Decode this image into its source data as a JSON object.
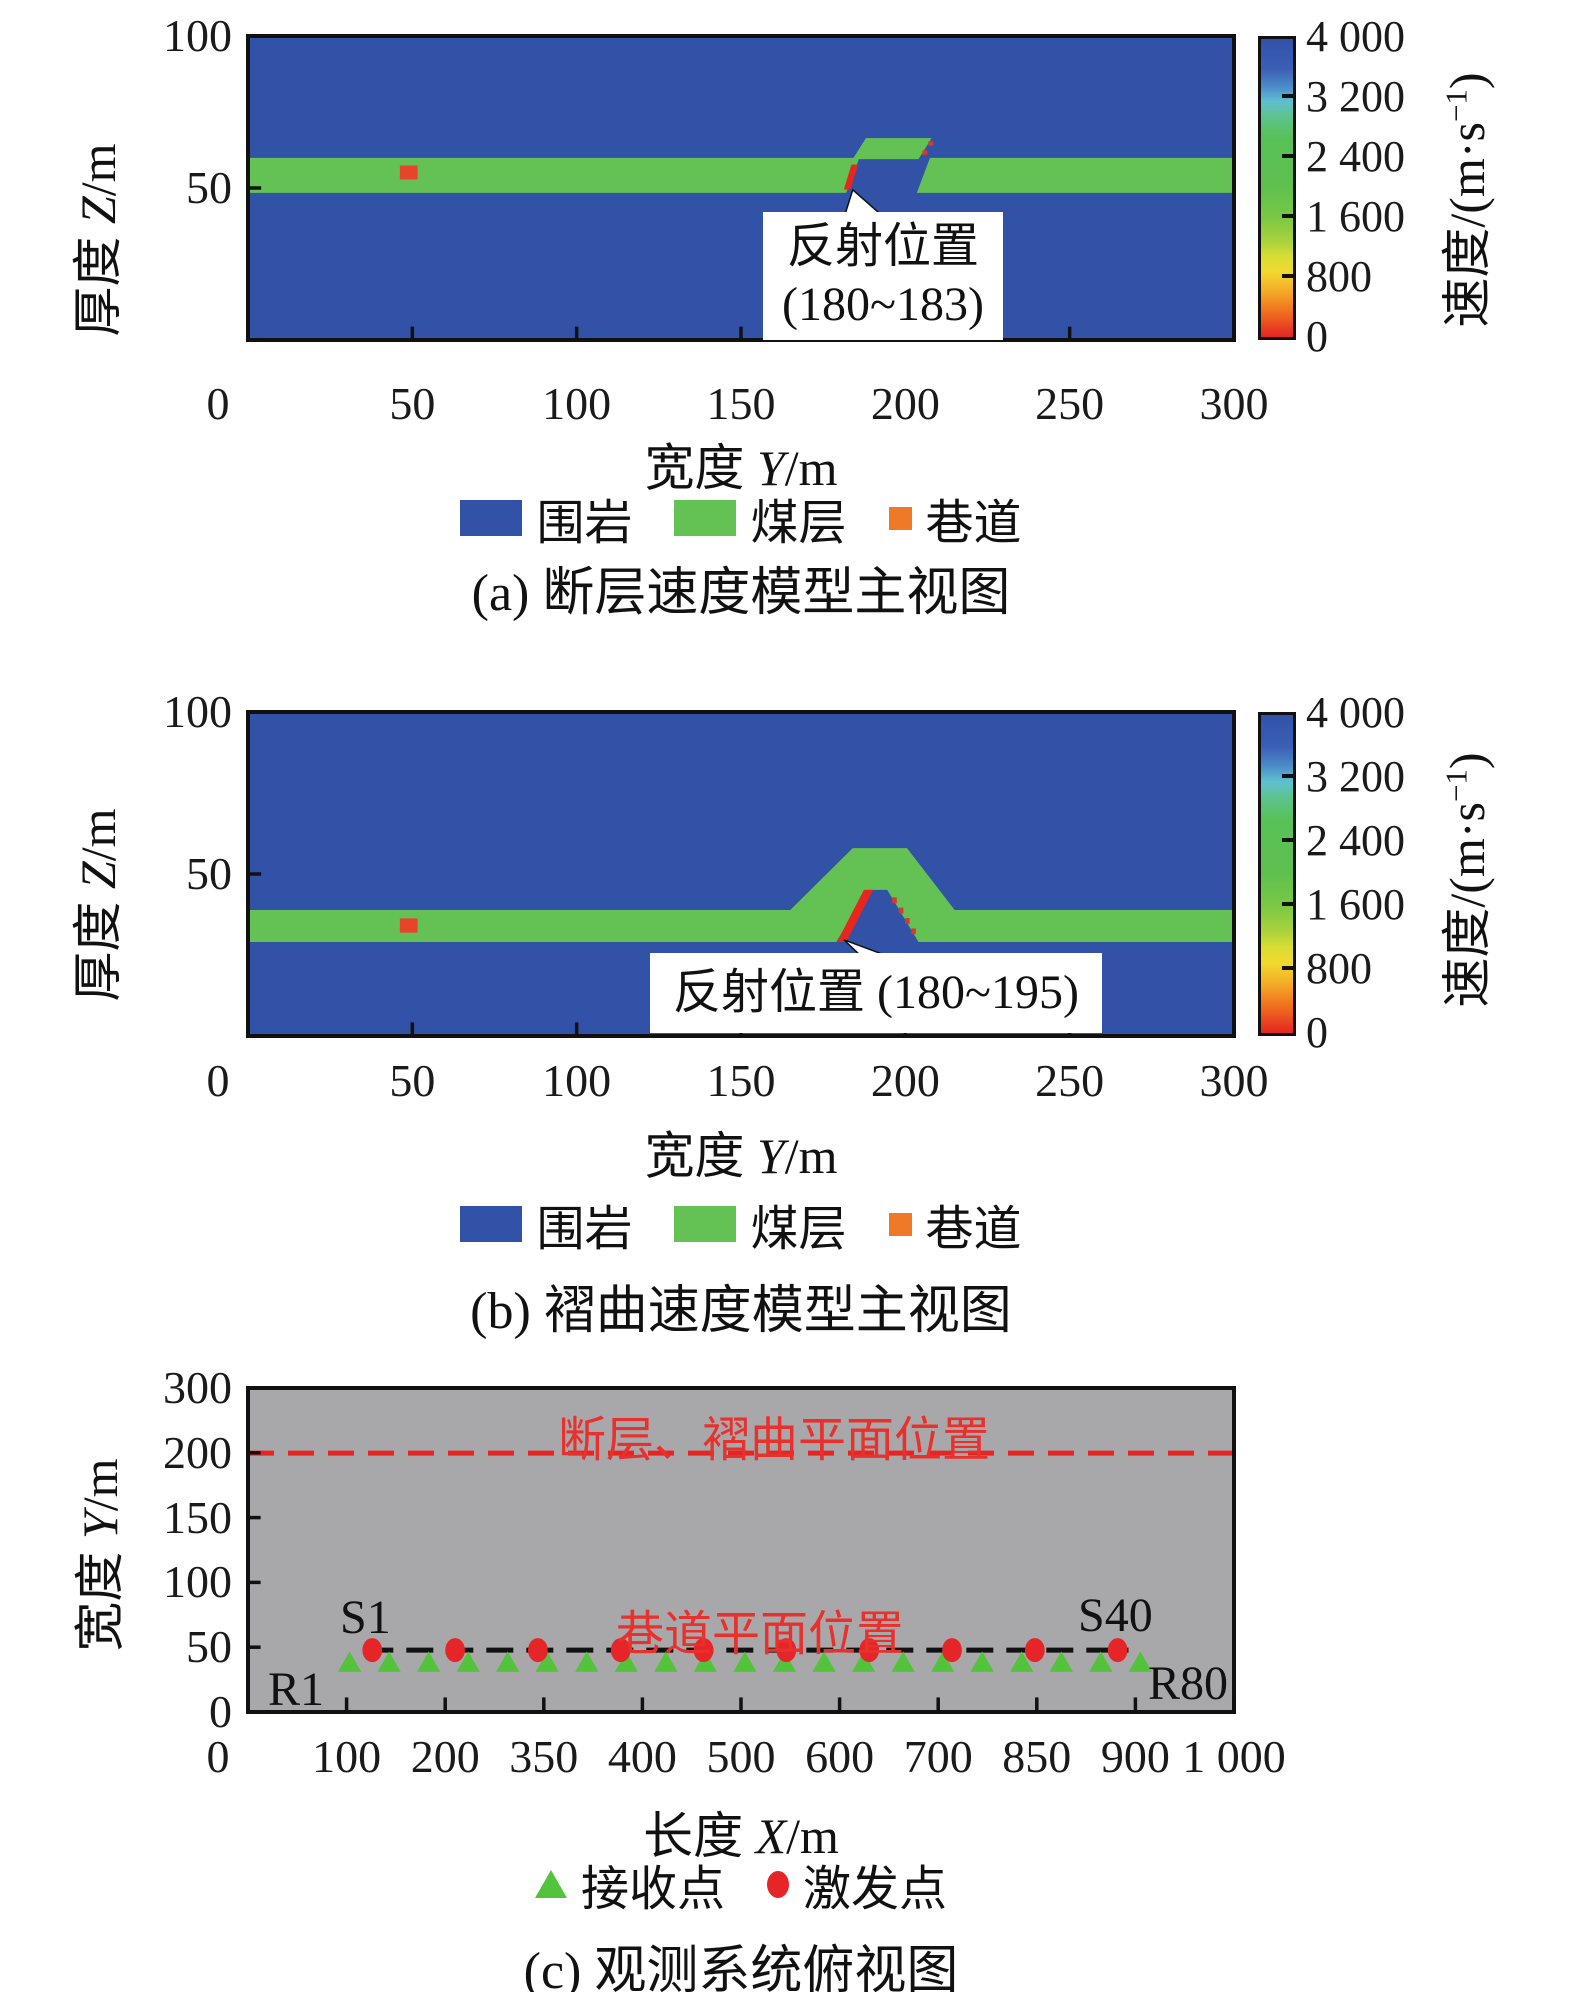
{
  "colors": {
    "rock_blue": "#3252a8",
    "coal_green": "#63c253",
    "roadway_square_red": "#e8432b",
    "roadway_legend_orange": "#ee7a28",
    "reflection_red": "#e8251f",
    "shot_red": "#e52528",
    "receiver_green": "#53c33b",
    "panel_c_background": "#a8a8ab",
    "annotation_red_text": "#e8312c"
  },
  "colorbar": {
    "tick_labels": [
      "4 000",
      "3 200",
      "2 400",
      "1 600",
      "800",
      "0"
    ],
    "unit_prefix": "速度/(m·s",
    "unit_sup": "−1",
    "unit_suffix": ")"
  },
  "panels": {
    "a": {
      "ylabel_pre": "厚度 ",
      "ylabel_var": "Z",
      "ylabel_unit": "/m",
      "xlabel_pre": "宽度 ",
      "xlabel_var": "Y",
      "xlabel_unit": "/m",
      "yticks": [
        "100",
        "50"
      ],
      "xticks": [
        "0",
        "50",
        "100",
        "150",
        "200",
        "250",
        "300"
      ],
      "legend": [
        {
          "label": "围岩"
        },
        {
          "label": "煤层"
        },
        {
          "label": "巷道"
        }
      ],
      "annotation_line1": "反射位置",
      "annotation_line2": "(180~183)",
      "caption": "(a) 断层速度模型主视图"
    },
    "b": {
      "ylabel_pre": "厚度 ",
      "ylabel_var": "Z",
      "ylabel_unit": "/m",
      "xlabel_pre": "宽度 ",
      "xlabel_var": "Y",
      "xlabel_unit": "/m",
      "yticks": [
        "100",
        "50"
      ],
      "xticks": [
        "0",
        "50",
        "100",
        "150",
        "200",
        "250",
        "300"
      ],
      "legend": [
        {
          "label": "围岩"
        },
        {
          "label": "煤层"
        },
        {
          "label": "巷道"
        }
      ],
      "annotation": "反射位置 (180~195)",
      "caption": "(b) 褶曲速度模型主视图"
    },
    "c": {
      "ylabel_pre": "宽度 ",
      "ylabel_var": "Y",
      "ylabel_unit": "/m",
      "xlabel_pre": "长度 ",
      "xlabel_var": "X",
      "xlabel_unit": "/m",
      "yticks": [
        "300",
        "200",
        "150",
        "100",
        "50",
        "0"
      ],
      "xticks": [
        "0",
        "100",
        "200",
        "350",
        "400",
        "500",
        "600",
        "700",
        "850",
        "900",
        "1 000"
      ],
      "fault_fold_line_label": "断层、褶曲平面位置",
      "roadway_line_label": "巷道平面位置",
      "s1": "S1",
      "s40": "S40",
      "r1": "R1",
      "r80": "R80",
      "legend": [
        {
          "label": "接收点"
        },
        {
          "label": "激发点"
        }
      ],
      "caption": "(c) 观测系统俯视图"
    }
  },
  "chart_data": [
    {
      "panel": "a",
      "type": "heatmap",
      "caption": "(a) 断层速度模型主视图",
      "x": {
        "label": "宽度 Y/m",
        "range": [
          0,
          300
        ],
        "ticks": [
          0,
          50,
          100,
          150,
          200,
          250,
          300
        ]
      },
      "y": {
        "label": "厚度 Z/m",
        "range": [
          0,
          100
        ],
        "ticks": [
          100,
          50,
          0
        ]
      },
      "colorbar": {
        "label": "速度/(m·s−1)",
        "ticks": [
          4000,
          3200,
          2400,
          1600,
          800,
          0
        ]
      },
      "legend": [
        "围岩",
        "煤层",
        "巷道"
      ],
      "model": {
        "coal_seam_z": [
          48,
          60
        ],
        "fault": {
          "reflection_y": [
            180,
            183
          ],
          "upthrown_block_y": [
            184,
            208
          ],
          "throw_m": 6
        },
        "roadway": {
          "y": 48,
          "z": 55
        },
        "annotation": "反射位置 (180~183)"
      }
    },
    {
      "panel": "b",
      "type": "heatmap",
      "caption": "(b) 褶曲速度模型主视图",
      "x": {
        "label": "宽度 Y/m",
        "range": [
          0,
          300
        ],
        "ticks": [
          0,
          50,
          100,
          150,
          200,
          250,
          300
        ]
      },
      "y": {
        "label": "厚度 Z/m",
        "range": [
          0,
          100
        ],
        "ticks": [
          100,
          50,
          0
        ]
      },
      "colorbar": {
        "label": "速度/(m·s−1)",
        "ticks": [
          4000,
          3200,
          2400,
          1600,
          800,
          0
        ]
      },
      "legend": [
        "围岩",
        "煤层",
        "巷道"
      ],
      "model": {
        "coal_seam_z": [
          29,
          39
        ],
        "fold": {
          "type": "anticline",
          "y_extent": [
            165,
            215
          ],
          "crest_z": 58,
          "reflection_y": [
            180,
            195
          ]
        },
        "roadway": {
          "y": 48,
          "z": 34
        },
        "annotation": "反射位置 (180~195)"
      }
    },
    {
      "panel": "c",
      "type": "scatter",
      "caption": "(c) 观测系统俯视图",
      "x": {
        "label": "长度 X/m",
        "tick_labels": [
          0,
          100,
          200,
          350,
          400,
          500,
          600,
          700,
          850,
          900,
          1000
        ]
      },
      "y": {
        "label": "宽度 Y/m",
        "tick_labels": [
          300,
          200,
          150,
          100,
          50,
          0
        ]
      },
      "lines": [
        {
          "label": "断层、褶曲平面位置",
          "y": 200,
          "style": "red-dashed",
          "x_range": [
            0,
            1000
          ]
        },
        {
          "label": "巷道平面位置",
          "y": 50,
          "style": "black-dashed",
          "x_range": [
            120,
            893
          ]
        }
      ],
      "shots": {
        "first_label": "S1",
        "last_label": "S40",
        "y": 50,
        "x_first": 126,
        "x_last": 882,
        "markers_shown": 10
      },
      "receivers": {
        "first_label": "R1",
        "last_label": "R80",
        "y": 45,
        "x_first": 103,
        "x_last": 905,
        "markers_shown": 21
      },
      "legend": [
        {
          "marker": "triangle",
          "label": "接收点"
        },
        {
          "marker": "dot",
          "label": "激发点"
        }
      ]
    }
  ]
}
